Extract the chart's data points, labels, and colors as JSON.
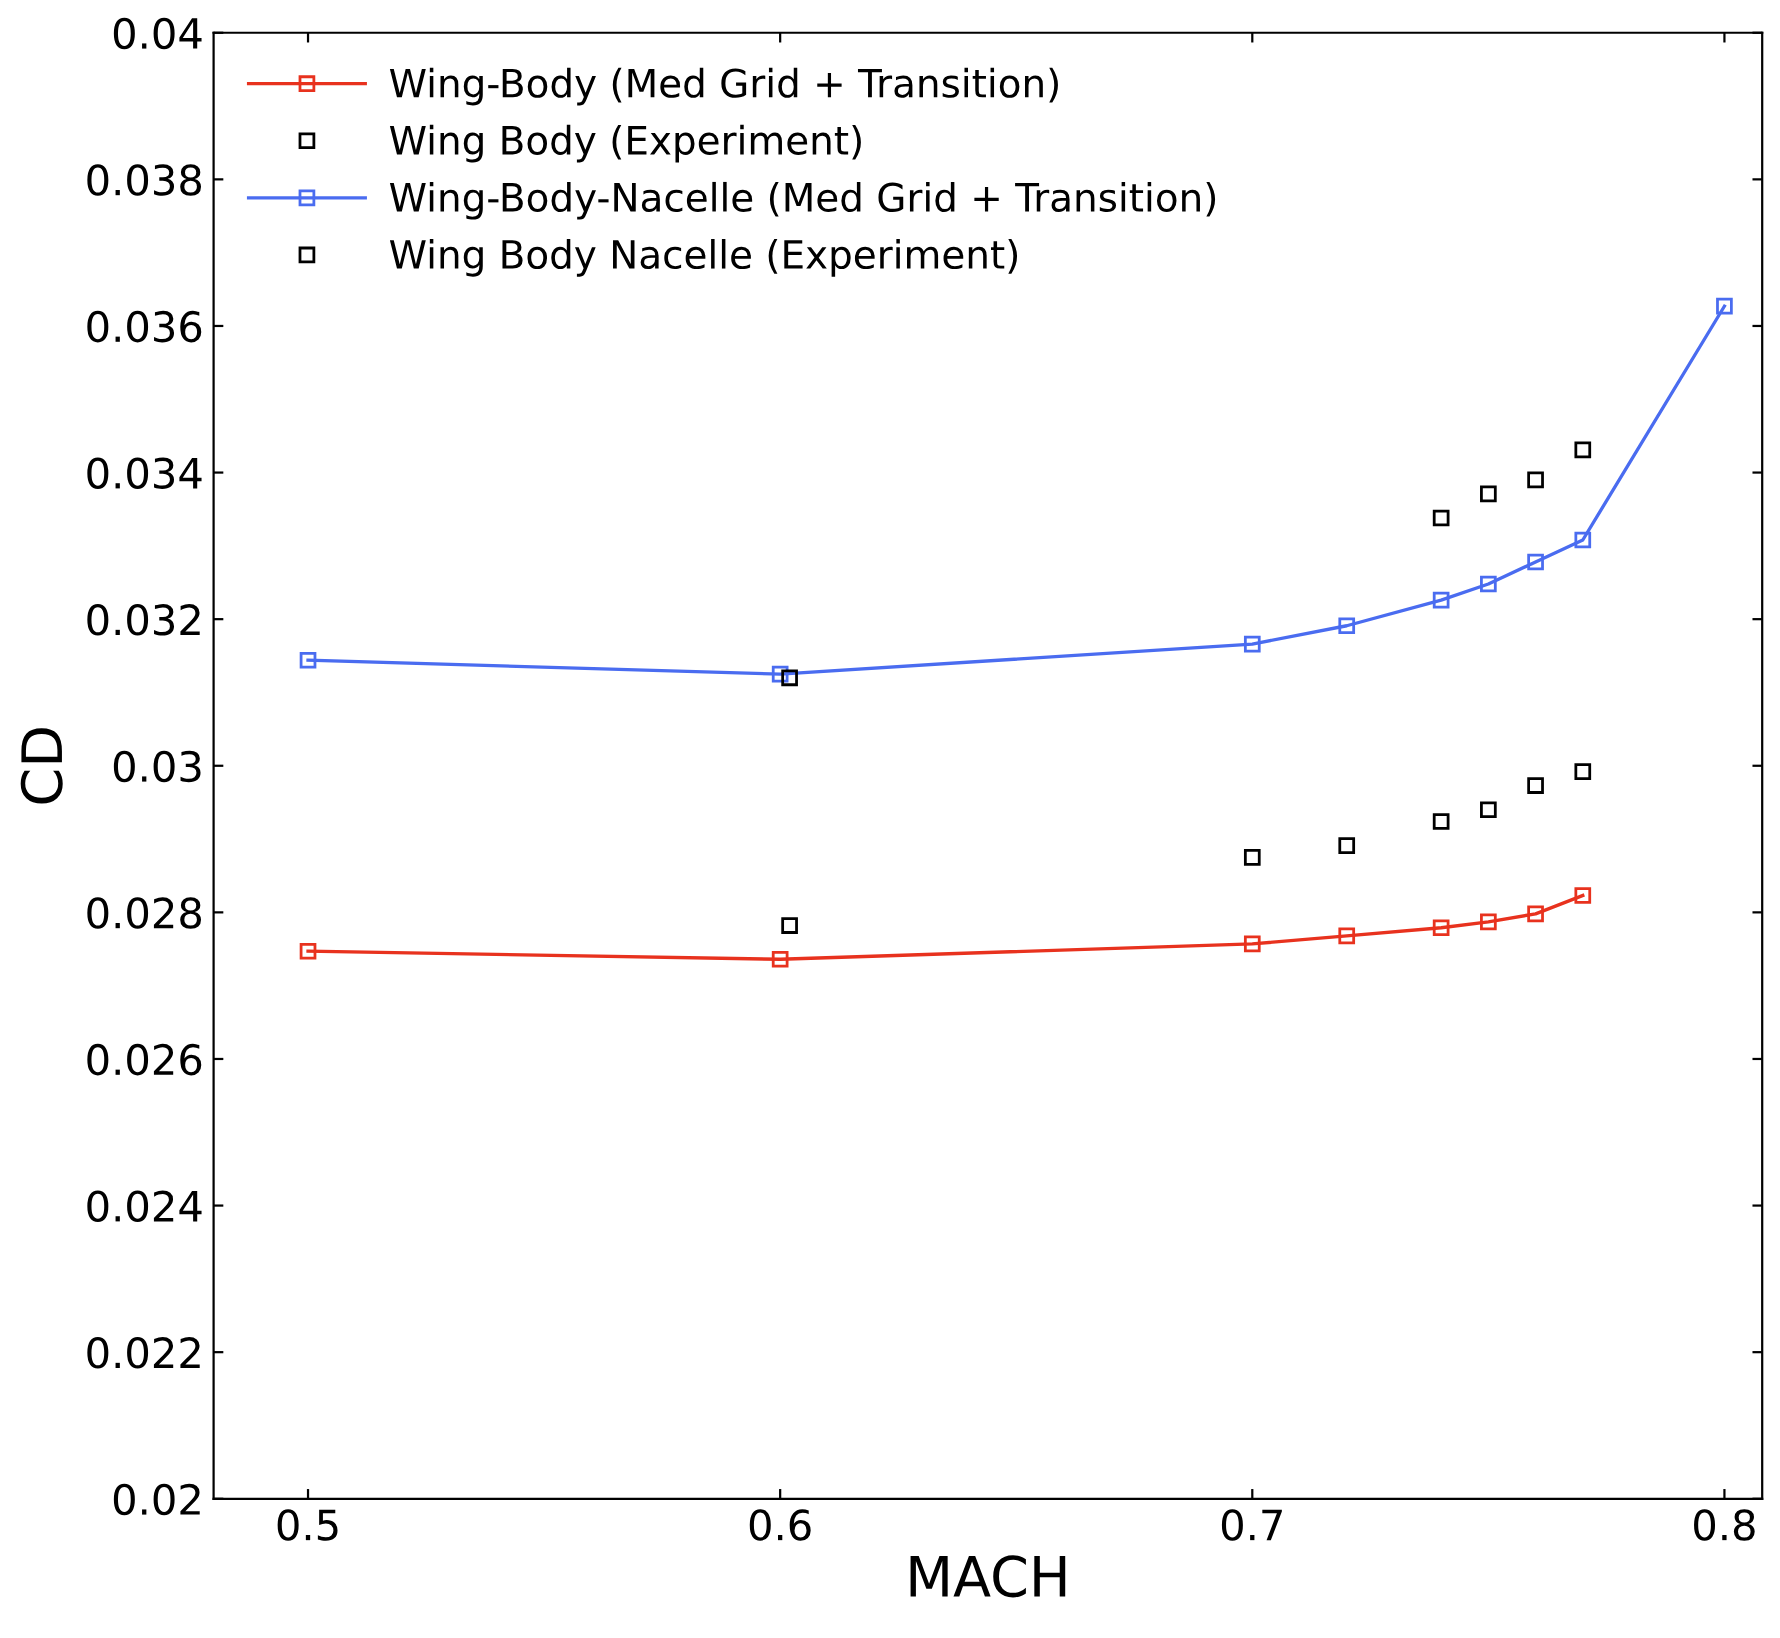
{
  "chart_data": {
    "type": "line",
    "xlabel": "MACH",
    "ylabel": "CD",
    "xlim": [
      0.48,
      0.808
    ],
    "ylim": [
      0.02,
      0.04
    ],
    "xticks": [
      0.5,
      0.6,
      0.7,
      0.8
    ],
    "yticks": [
      0.02,
      0.022,
      0.024,
      0.026,
      0.028,
      0.03,
      0.032,
      0.034,
      0.036,
      0.038,
      0.04
    ],
    "grid": false,
    "legend": "top left",
    "marker": "square",
    "series": [
      {
        "name": "Wing-Body (Med Grid + Transition)",
        "type": "line",
        "color": "#e8321e",
        "x": [
          0.5,
          0.6,
          0.7,
          0.72,
          0.74,
          0.75,
          0.76,
          0.77
        ],
        "values": [
          0.02747,
          0.02736,
          0.02757,
          0.02768,
          0.02779,
          0.02787,
          0.02798,
          0.02823
        ]
      },
      {
        "name": "Wing Body (Experiment)",
        "type": "scatter",
        "color": "#000000",
        "x": [
          0.602,
          0.7,
          0.72,
          0.74,
          0.75,
          0.76,
          0.77
        ],
        "values": [
          0.02782,
          0.02875,
          0.02891,
          0.02924,
          0.0294,
          0.02973,
          0.02992
        ]
      },
      {
        "name": "Wing-Body-Nacelle (Med Grid + Transition)",
        "type": "line",
        "color": "#4a6cf0",
        "x": [
          0.5,
          0.6,
          0.7,
          0.72,
          0.74,
          0.75,
          0.76,
          0.77,
          0.8
        ],
        "values": [
          0.03144,
          0.03125,
          0.03166,
          0.03191,
          0.03226,
          0.03248,
          0.03278,
          0.03308,
          0.03627
        ]
      },
      {
        "name": "Wing Body Nacelle (Experiment)",
        "type": "scatter",
        "color": "#000000",
        "x": [
          0.602,
          0.74,
          0.75,
          0.76,
          0.77
        ],
        "values": [
          0.0312,
          0.03338,
          0.03371,
          0.0339,
          0.03431
        ]
      }
    ]
  }
}
